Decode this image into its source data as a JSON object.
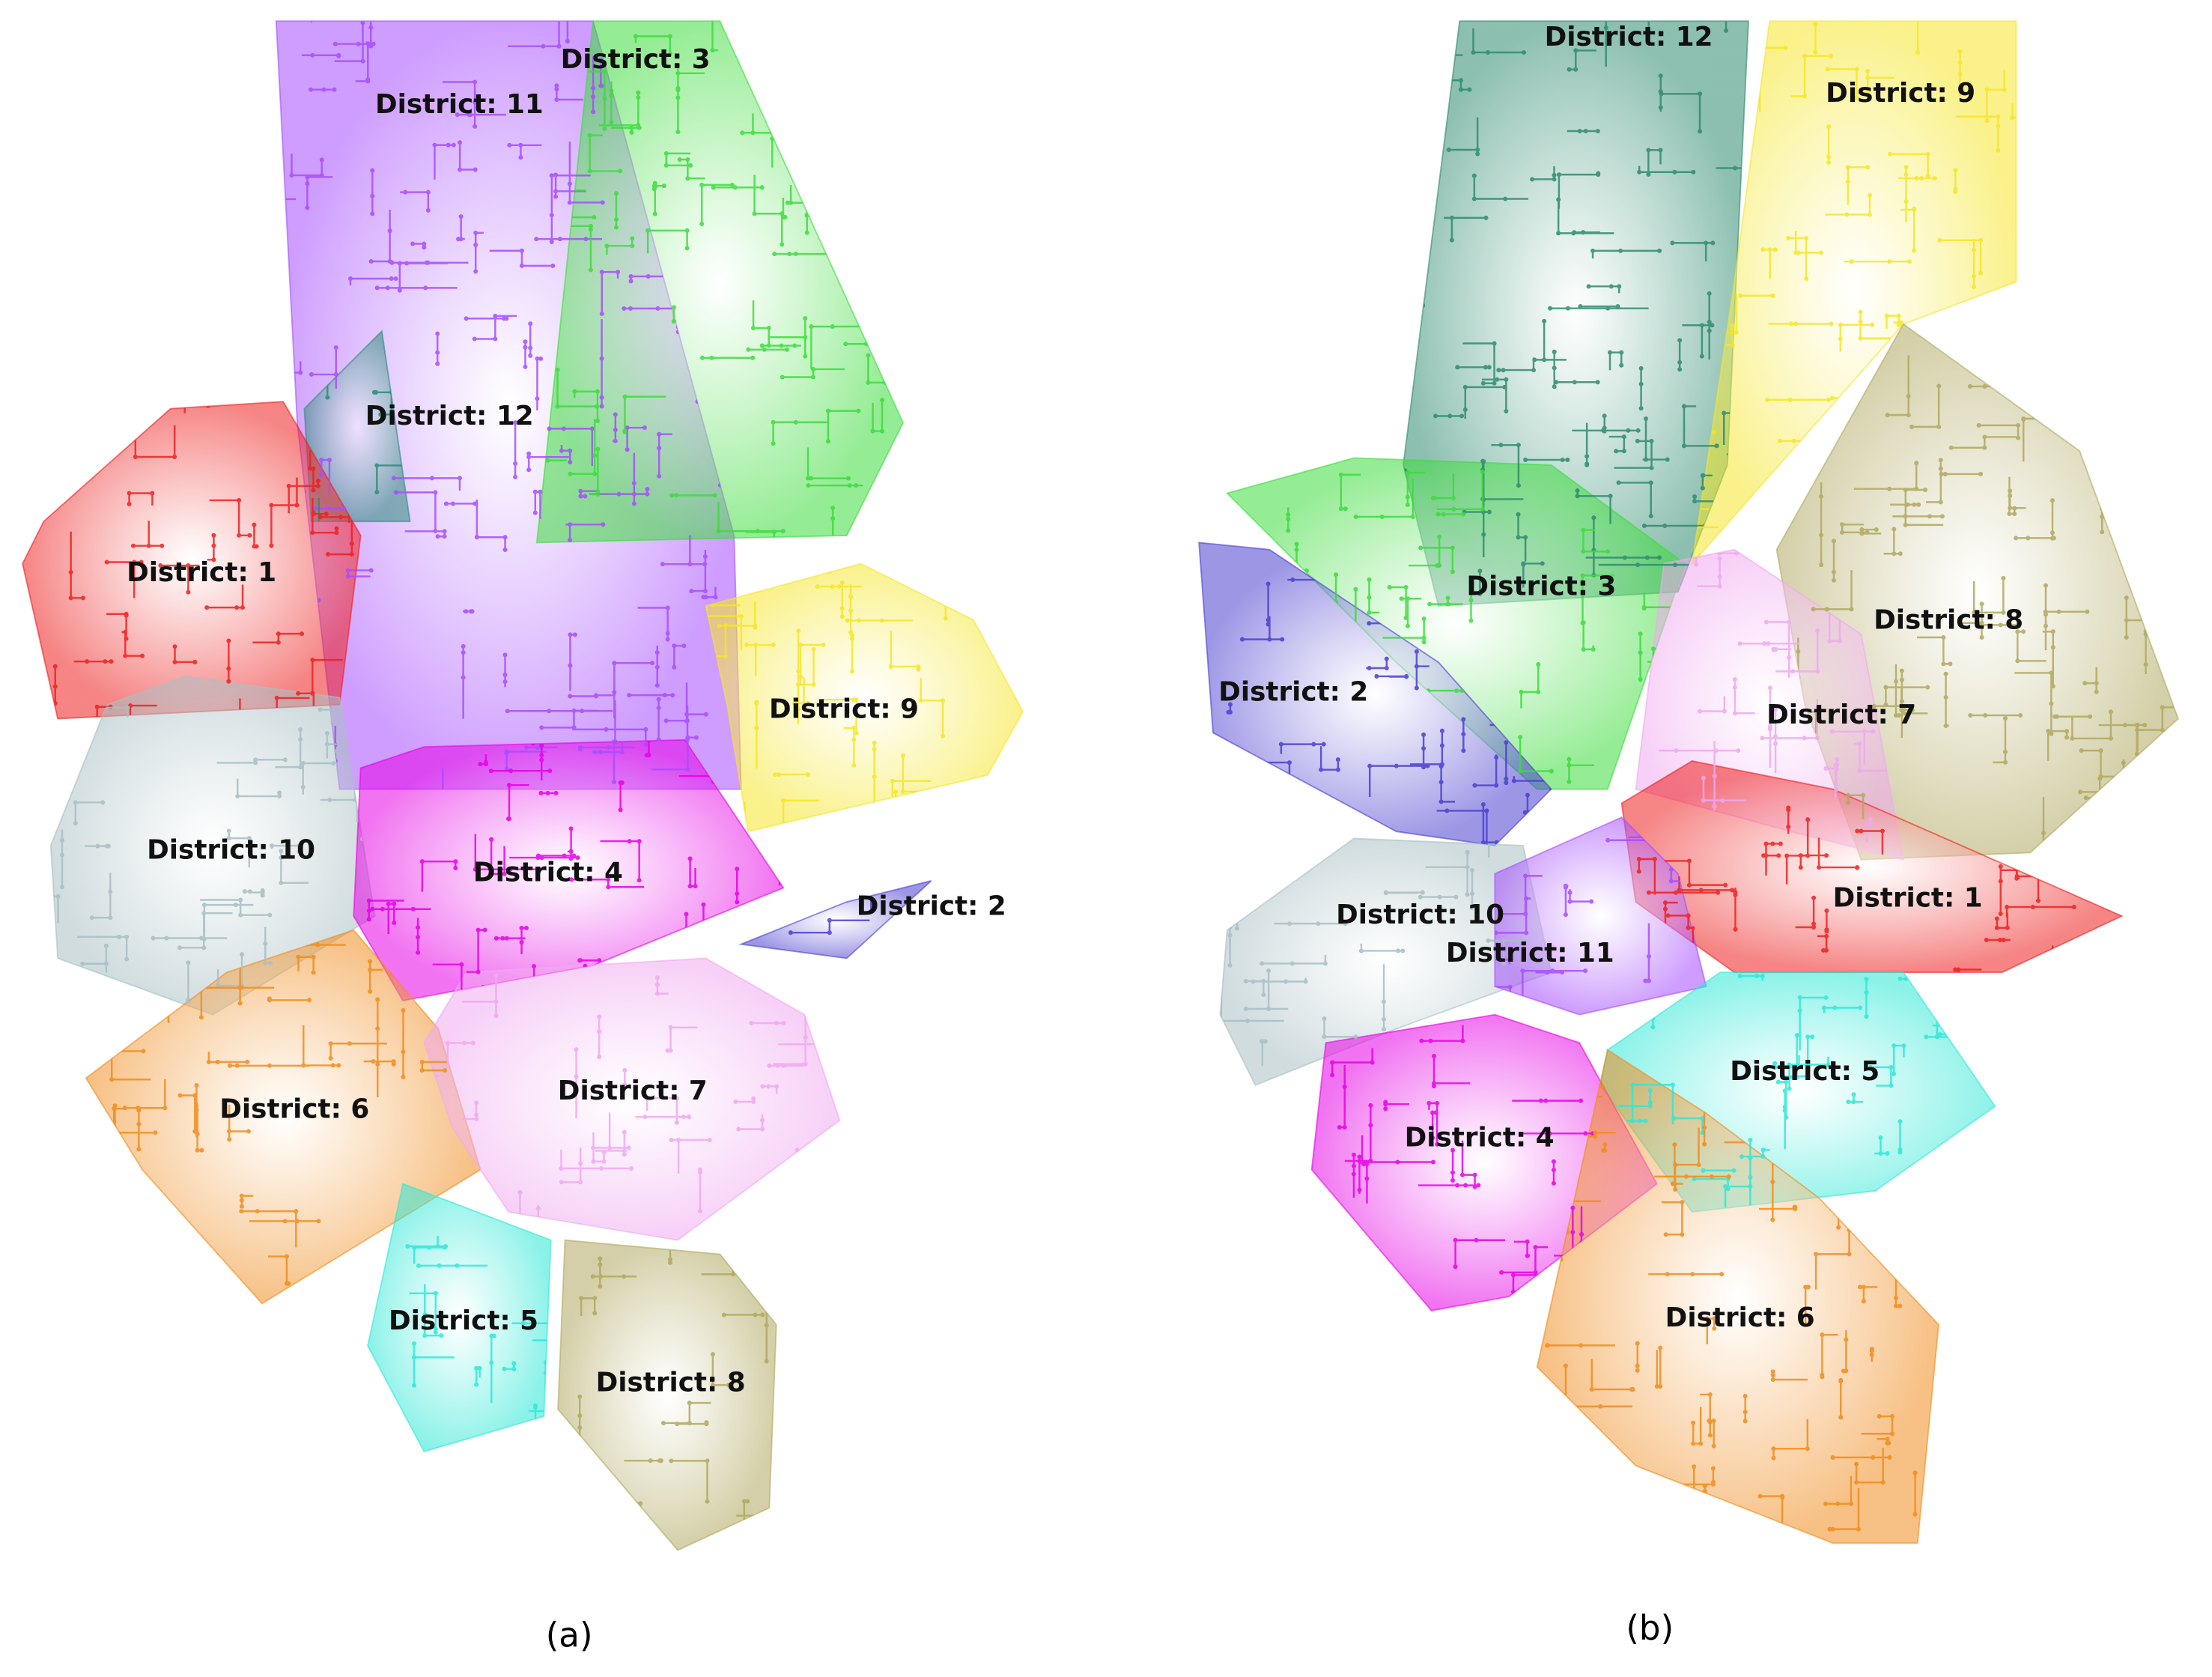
{
  "panels": [
    {
      "caption": "(a)",
      "districts": [
        "District: 11",
        "District: 3",
        "District: 12",
        "District: 1",
        "District: 9",
        "District: 10",
        "District: 4",
        "District: 2",
        "District: 6",
        "District: 7",
        "District: 5",
        "District: 8"
      ]
    },
    {
      "caption": "(b)",
      "districts": [
        "District: 12",
        "District: 9",
        "District: 3",
        "District: 2",
        "District: 8",
        "District: 7",
        "District: 1",
        "District: 10",
        "District: 11",
        "District: 5",
        "District: 4",
        "District: 6"
      ]
    }
  ]
}
